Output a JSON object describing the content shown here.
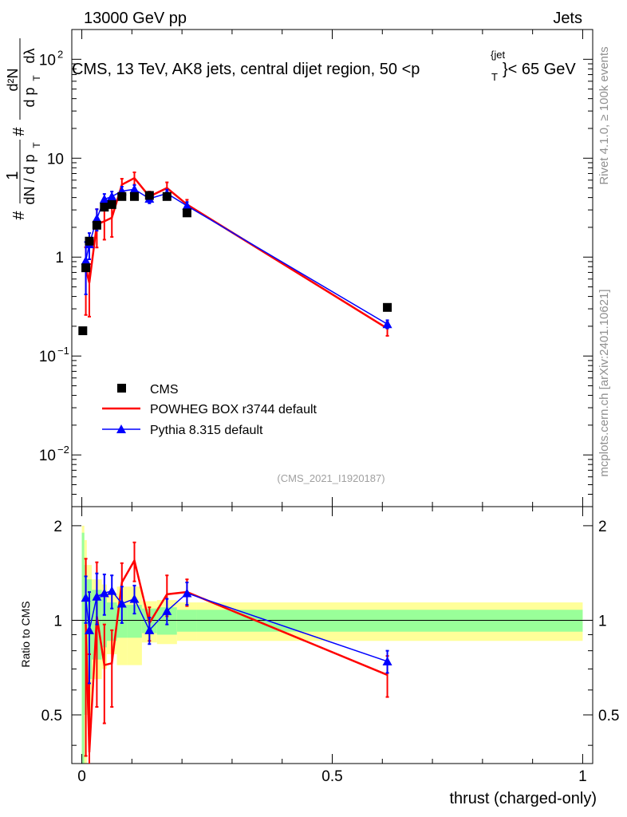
{
  "header": {
    "left_label": "13000 GeV pp",
    "right_label": "Jets",
    "title_main": "CMS, 13 TeV, AK8 jets, central dijet region, 50 <p",
    "title_sup": "{jet",
    "title_sub": "T",
    "title_end": "}< 65 GeV"
  },
  "side_labels": {
    "rivet": "Rivet 4.1.0, ≥ 100k events",
    "mcplots": "mcplots.cern.ch [arXiv:2401.10621]"
  },
  "chart_data": {
    "type": "scatter",
    "analysis_tag": "(CMS_2021_I1920187)",
    "xlabel": "thrust (charged-only)",
    "xlim": [
      -0.02,
      1.02
    ],
    "x_ticks": [
      "0",
      "0.5",
      "1"
    ],
    "main": {
      "ylabel_numerator": "d²N",
      "ylabel_den": "d p",
      "ylabel_den_sub": "T",
      "ylabel_den_end": "dλ",
      "ylabel_prefix": "1",
      "ylabel_prefix_den": "dN / d p",
      "ylabel_prefix_sub": "T",
      "ylabel_hash": "#",
      "yscale": "log",
      "ylim": [
        0.003,
        200
      ],
      "y_ticks": [
        {
          "base": "10",
          "exp": "2"
        },
        {
          "base": "10",
          "exp": ""
        },
        {
          "base": "1",
          "exp": ""
        },
        {
          "base": "10",
          "exp": "−1"
        },
        {
          "base": "10",
          "exp": "−2"
        }
      ]
    },
    "ratio": {
      "ylabel": "Ratio to CMS",
      "ylim": [
        0.35,
        2.3
      ],
      "y_ticks": [
        "2",
        "1",
        "0.5"
      ]
    },
    "legend": {
      "position": "lower-left",
      "entries": [
        "CMS",
        "POWHEG BOX r3744 default",
        "Pythia 8.315 default"
      ]
    },
    "colors": {
      "data": "#000000",
      "powheg": "#ff0000",
      "pythia": "#0000ff",
      "band_inner": "#99ff99",
      "band_outer": "#ffff99"
    },
    "data_points": {
      "name": "CMS",
      "x": [
        0.002,
        0.008,
        0.015,
        0.03,
        0.045,
        0.06,
        0.08,
        0.105,
        0.135,
        0.17,
        0.21,
        0.61
      ],
      "y": [
        0.18,
        0.78,
        1.45,
        2.1,
        3.2,
        3.4,
        4.1,
        4.1,
        4.2,
        4.1,
        2.8,
        0.31
      ]
    },
    "band": {
      "edges": [
        0,
        0.005,
        0.01,
        0.02,
        0.04,
        0.05,
        0.07,
        0.09,
        0.12,
        0.15,
        0.19,
        0.23,
        1.0
      ],
      "inner_rel": [
        0.9,
        0.5,
        0.35,
        0.25,
        0.18,
        0.14,
        0.12,
        0.12,
        0.09,
        0.1,
        0.08,
        0.08
      ],
      "outer_rel": [
        1.0,
        0.8,
        0.5,
        0.35,
        0.3,
        0.22,
        0.28,
        0.28,
        0.15,
        0.16,
        0.14,
        0.14
      ]
    },
    "series": [
      {
        "name": "POWHEG BOX r3744 default",
        "x": [
          0.008,
          0.015,
          0.03,
          0.045,
          0.06,
          0.08,
          0.105,
          0.135,
          0.17,
          0.21,
          0.61
        ],
        "y": [
          0.76,
          0.55,
          2.15,
          2.3,
          2.5,
          5.4,
          6.3,
          4.1,
          5.0,
          3.4,
          0.19
        ],
        "yerr": [
          0.5,
          0.3,
          0.9,
          0.8,
          0.9,
          0.8,
          0.9,
          0.5,
          0.7,
          0.4,
          0.03
        ],
        "ratio": [
          0.97,
          0.38,
          1.03,
          0.72,
          0.73,
          1.32,
          1.55,
          0.98,
          1.21,
          1.23,
          0.67
        ],
        "ratio_err": [
          0.6,
          0.4,
          0.5,
          0.25,
          0.2,
          0.2,
          0.22,
          0.12,
          0.18,
          0.12,
          0.1
        ]
      },
      {
        "name": "Pythia 8.315 default",
        "x": [
          0.008,
          0.015,
          0.03,
          0.045,
          0.06,
          0.08,
          0.105,
          0.135,
          0.17,
          0.21,
          0.61
        ],
        "y": [
          0.92,
          1.35,
          2.45,
          3.85,
          4.1,
          4.65,
          4.85,
          3.9,
          4.4,
          3.3,
          0.21
        ],
        "yerr": [
          0.5,
          0.4,
          0.6,
          0.5,
          0.5,
          0.5,
          0.5,
          0.4,
          0.4,
          0.3,
          0.02
        ],
        "ratio": [
          1.18,
          0.93,
          1.19,
          1.22,
          1.24,
          1.13,
          1.17,
          0.93,
          1.07,
          1.22,
          0.74
        ],
        "ratio_err": [
          0.2,
          0.3,
          0.22,
          0.18,
          0.15,
          0.15,
          0.12,
          0.09,
          0.1,
          0.1,
          0.06
        ]
      }
    ]
  }
}
